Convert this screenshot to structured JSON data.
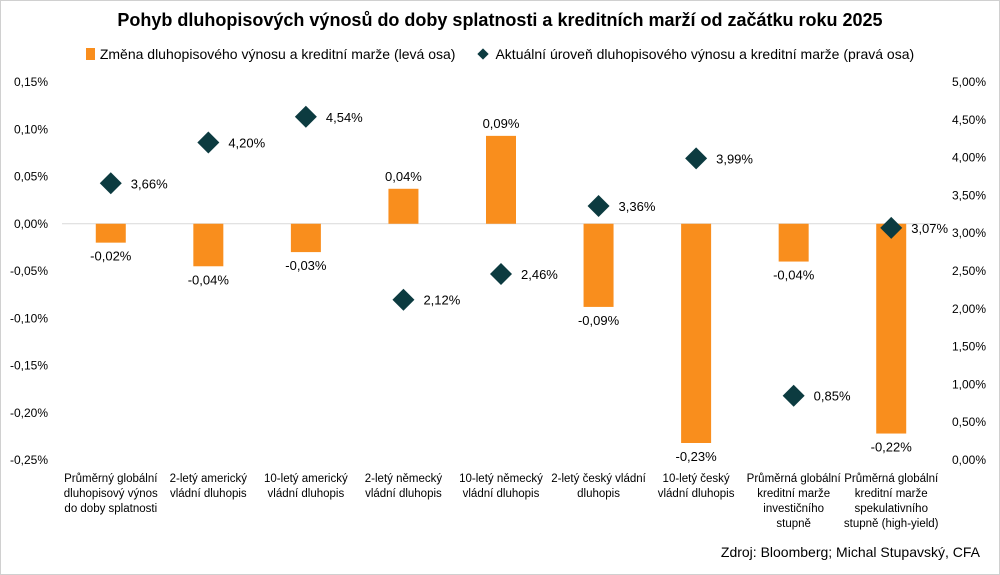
{
  "chart_data": {
    "type": "bar",
    "title": "Pohyb dluhopisových výnosů do doby splatnosti a kreditních marží od začátku roku 2025",
    "categories": [
      [
        "Průměrný globální",
        "dluhopisový výnos",
        "do doby splatnosti"
      ],
      [
        "2-letý americký",
        "vládní dluhopis"
      ],
      [
        "10-letý americký",
        "vládní dluhopis"
      ],
      [
        "2-letý německý",
        "vládní dluhopis"
      ],
      [
        "10-letý německý",
        "vládní dluhopis"
      ],
      [
        "2-letý český vládní",
        "dluhopis"
      ],
      [
        "10-letý český",
        "vládní dluhopis"
      ],
      [
        "Průměrná globální",
        "kreditní marže",
        "investičního",
        "stupně"
      ],
      [
        "Průměrná globální",
        "kreditní marže",
        "spekulativního",
        "stupně (high-yield)"
      ]
    ],
    "series": [
      {
        "name": "Změna dluhopisového výnosu a kreditní marže (levá osa)",
        "axis": "left",
        "marker": "bar",
        "color": "#F98E1D",
        "values": [
          -0.02,
          -0.045,
          -0.03,
          0.037,
          0.093,
          -0.088,
          -0.232,
          -0.04,
          -0.222
        ],
        "labels": [
          "-0,02%",
          "-0,04%",
          "-0,03%",
          "0,04%",
          "0,09%",
          "-0,09%",
          "-0,23%",
          "-0,04%",
          "-0,22%"
        ]
      },
      {
        "name": "Aktuální úroveň dluhopisového výnosu a kreditní marže (pravá osa)",
        "axis": "right",
        "marker": "diamond",
        "color": "#0C3B40",
        "values": [
          3.66,
          4.2,
          4.54,
          2.12,
          2.46,
          3.36,
          3.99,
          0.85,
          3.07
        ],
        "labels": [
          "3,66%",
          "4,20%",
          "4,54%",
          "2,12%",
          "2,46%",
          "3,36%",
          "3,99%",
          "0,85%",
          "3,07%"
        ]
      }
    ],
    "left_axis": {
      "ylim": [
        -0.25,
        0.15
      ],
      "ticks": [
        0.15,
        0.1,
        0.05,
        0.0,
        -0.05,
        -0.1,
        -0.15,
        -0.2,
        -0.25
      ],
      "tick_labels": [
        "0,15%",
        "0,10%",
        "0,05%",
        "0,00%",
        "-0,05%",
        "-0,10%",
        "-0,15%",
        "-0,20%",
        "-0,25%"
      ]
    },
    "right_axis": {
      "ylim": [
        0.0,
        5.0
      ],
      "ticks": [
        5.0,
        4.5,
        4.0,
        3.5,
        3.0,
        2.5,
        2.0,
        1.5,
        1.0,
        0.5,
        0.0
      ],
      "tick_labels": [
        "5,00%",
        "4,50%",
        "4,00%",
        "3,50%",
        "3,00%",
        "2,50%",
        "2,00%",
        "1,50%",
        "1,00%",
        "0,50%",
        "0,00%"
      ]
    },
    "grid": false,
    "legend": "top"
  },
  "source": "Zdroj: Bloomberg; Michal Stupavský, CFA"
}
